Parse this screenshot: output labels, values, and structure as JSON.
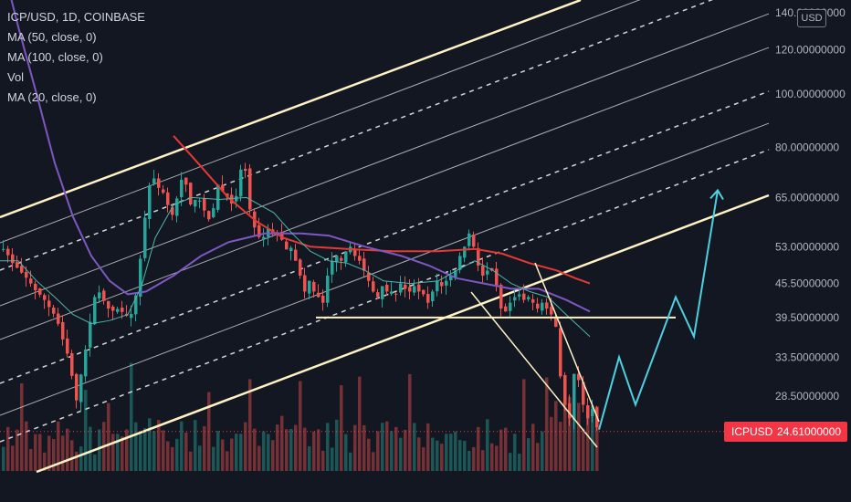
{
  "header": {
    "symbol_line": "ICP/USD, 1D, COINBASE",
    "indicators": [
      "MA (50, close, 0)",
      "MA (100, close, 0)",
      "Vol",
      "MA (20, close, 0)"
    ]
  },
  "currency_badge": "USD",
  "last_price_tag": {
    "symbol": "ICPUSD",
    "value": "24.61000000"
  },
  "colors": {
    "background": "#131722",
    "up": "#26a69a",
    "down": "#ef5350",
    "ma50": "#e53935",
    "ma100": "#7e57c2",
    "ma20": "#4db6ac",
    "channel": "#fff3c4",
    "projection": "#4dd0e1",
    "price_tag": "#f23645"
  },
  "chart_data": {
    "type": "candlestick",
    "title": "ICP/USD, 1D, COINBASE",
    "y_axis": {
      "scale": "log",
      "tick_labels": [
        "140.00000000",
        "120.00000000",
        "100.00000000",
        "80.00000000",
        "65.00000000",
        "53.00000000",
        "45.50000000",
        "39.50000000",
        "33.50000000",
        "28.50000000"
      ],
      "tick_values": [
        140,
        120,
        100,
        80,
        65,
        53,
        45.5,
        39.5,
        33.5,
        28.5
      ]
    },
    "last_price": 24.61,
    "price_path": [
      [
        0,
        53
      ],
      [
        6,
        51.5
      ],
      [
        12,
        49.5
      ],
      [
        20,
        48
      ],
      [
        30,
        46
      ],
      [
        38,
        44
      ],
      [
        45,
        43
      ],
      [
        53,
        41
      ],
      [
        60,
        39.5
      ],
      [
        66,
        36.5
      ],
      [
        72,
        34
      ],
      [
        77,
        31
      ],
      [
        82,
        28
      ],
      [
        85,
        30
      ],
      [
        90,
        33
      ],
      [
        96,
        38
      ],
      [
        102,
        43
      ],
      [
        108,
        44
      ],
      [
        114,
        41.5
      ],
      [
        120,
        40.5
      ],
      [
        128,
        41
      ],
      [
        135,
        40
      ],
      [
        140,
        39.5
      ],
      [
        145,
        41
      ],
      [
        150,
        47
      ],
      [
        155,
        56
      ],
      [
        160,
        66
      ],
      [
        165,
        72
      ],
      [
        170,
        68
      ],
      [
        176,
        67
      ],
      [
        182,
        63
      ],
      [
        188,
        60
      ],
      [
        193,
        66
      ],
      [
        198,
        71
      ],
      [
        203,
        68
      ],
      [
        208,
        62
      ],
      [
        213,
        65
      ],
      [
        218,
        64
      ],
      [
        223,
        61
      ],
      [
        228,
        59
      ],
      [
        233,
        63
      ],
      [
        238,
        70
      ],
      [
        243,
        66
      ],
      [
        248,
        65
      ],
      [
        253,
        63
      ],
      [
        258,
        66
      ],
      [
        262,
        73
      ],
      [
        266,
        75
      ],
      [
        270,
        66
      ],
      [
        274,
        58
      ],
      [
        279,
        57
      ],
      [
        284,
        54
      ],
      [
        289,
        56
      ],
      [
        294,
        58
      ],
      [
        299,
        55
      ],
      [
        304,
        57
      ],
      [
        309,
        53
      ],
      [
        314,
        52
      ],
      [
        318,
        53
      ],
      [
        322,
        50
      ],
      [
        327,
        47
      ],
      [
        332,
        44
      ],
      [
        337,
        46
      ],
      [
        342,
        44
      ],
      [
        347,
        43
      ],
      [
        352,
        42
      ],
      [
        357,
        47
      ],
      [
        362,
        50
      ],
      [
        367,
        51
      ],
      [
        372,
        50
      ],
      [
        377,
        52
      ],
      [
        382,
        53
      ],
      [
        387,
        51
      ],
      [
        392,
        50
      ],
      [
        397,
        48
      ],
      [
        402,
        46
      ],
      [
        407,
        44
      ],
      [
        412,
        43
      ],
      [
        417,
        45
      ],
      [
        422,
        44
      ],
      [
        427,
        44
      ],
      [
        432,
        43.5
      ],
      [
        437,
        45.5
      ],
      [
        442,
        44.5
      ],
      [
        447,
        44
      ],
      [
        452,
        45
      ],
      [
        457,
        44
      ],
      [
        462,
        43.5
      ],
      [
        467,
        42
      ],
      [
        472,
        44
      ],
      [
        477,
        46
      ],
      [
        482,
        45
      ],
      [
        487,
        46
      ],
      [
        492,
        47
      ],
      [
        497,
        48
      ],
      [
        502,
        51
      ],
      [
        507,
        53
      ],
      [
        512,
        56
      ],
      [
        517,
        53
      ],
      [
        522,
        49
      ],
      [
        527,
        47
      ],
      [
        532,
        48
      ],
      [
        537,
        48
      ],
      [
        542,
        45
      ],
      [
        547,
        41
      ],
      [
        552,
        40.5
      ],
      [
        557,
        42
      ],
      [
        562,
        43
      ],
      [
        567,
        43.5
      ],
      [
        572,
        42.5
      ],
      [
        577,
        43
      ],
      [
        582,
        42
      ],
      [
        587,
        41
      ],
      [
        592,
        42
      ],
      [
        597,
        41
      ],
      [
        602,
        40
      ],
      [
        607,
        38
      ],
      [
        610,
        33
      ],
      [
        614,
        29
      ],
      [
        618,
        27
      ],
      [
        622,
        26
      ],
      [
        626,
        31
      ],
      [
        630,
        32
      ],
      [
        634,
        29
      ],
      [
        638,
        27
      ],
      [
        642,
        26
      ],
      [
        646,
        27.5
      ],
      [
        650,
        25.5
      ],
      [
        654,
        24.61
      ]
    ],
    "series": [
      {
        "name": "MA (50, close, 0)",
        "color": "#e53935",
        "values": [
          [
            190,
            84
          ],
          [
            220,
            74
          ],
          [
            250,
            65
          ],
          [
            280,
            59
          ],
          [
            310,
            55
          ],
          [
            340,
            53
          ],
          [
            380,
            52.5
          ],
          [
            430,
            52
          ],
          [
            480,
            52
          ],
          [
            520,
            52.5
          ],
          [
            550,
            51.5
          ],
          [
            580,
            49.5
          ],
          [
            610,
            48
          ],
          [
            630,
            46.5
          ],
          [
            646,
            45.5
          ]
        ]
      },
      {
        "name": "MA (100, close, 0)",
        "color": "#7e57c2",
        "values": [
          [
            0,
            100000
          ],
          [
            20,
            132
          ],
          [
            40,
            100
          ],
          [
            60,
            75
          ],
          [
            80,
            60
          ],
          [
            100,
            51
          ],
          [
            120,
            46
          ],
          [
            140,
            43.5
          ],
          [
            160,
            44
          ],
          [
            190,
            47
          ],
          [
            220,
            51
          ],
          [
            250,
            54
          ],
          [
            290,
            56
          ],
          [
            330,
            56
          ],
          [
            360,
            55.5
          ],
          [
            400,
            53
          ],
          [
            440,
            51
          ],
          [
            470,
            49
          ],
          [
            500,
            46.5
          ],
          [
            530,
            45.5
          ],
          [
            560,
            44.5
          ],
          [
            590,
            44.5
          ],
          [
            620,
            42.5
          ],
          [
            646,
            40.5
          ]
        ]
      },
      {
        "name": "MA (20, close, 0)",
        "color": "#4db6ac",
        "values": [
          [
            0,
            50
          ],
          [
            20,
            50
          ],
          [
            40,
            46
          ],
          [
            60,
            43
          ],
          [
            80,
            40
          ],
          [
            100,
            38.5
          ],
          [
            120,
            39
          ],
          [
            140,
            40
          ],
          [
            155,
            45
          ],
          [
            170,
            55
          ],
          [
            190,
            63
          ],
          [
            210,
            65
          ],
          [
            240,
            64.5
          ],
          [
            270,
            65
          ],
          [
            300,
            61
          ],
          [
            320,
            56
          ],
          [
            340,
            52
          ],
          [
            360,
            50
          ],
          [
            380,
            49.5
          ],
          [
            400,
            48
          ],
          [
            420,
            46
          ],
          [
            450,
            45.5
          ],
          [
            480,
            46
          ],
          [
            500,
            48
          ],
          [
            520,
            50
          ],
          [
            540,
            48
          ],
          [
            560,
            45.5
          ],
          [
            580,
            44
          ],
          [
            600,
            43
          ],
          [
            620,
            40
          ],
          [
            646,
            36.5
          ]
        ]
      }
    ],
    "projection_path": [
      [
        656,
        24.8
      ],
      [
        678,
        33.5
      ],
      [
        696,
        27.5
      ],
      [
        740,
        43
      ],
      [
        760,
        36.5
      ],
      [
        786,
        67
      ]
    ],
    "horizontal_support": {
      "price": 39.5,
      "x_from": 346,
      "x_to": 740
    },
    "volume_bars": [
      {
        "x_from": 0,
        "x_to": 654,
        "note": "relative volume shown at bottom of chart"
      }
    ]
  }
}
